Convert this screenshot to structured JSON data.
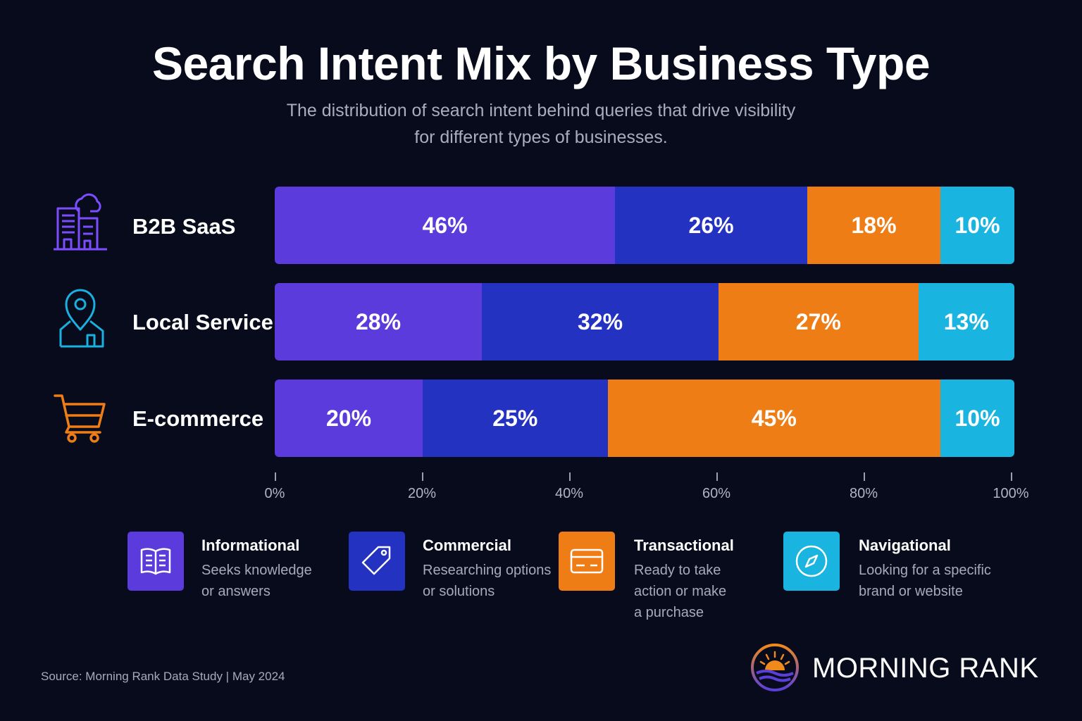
{
  "header": {
    "title": "Search Intent Mix by Business Type",
    "subtitle_line1": "The distribution of search intent behind queries that drive visibility",
    "subtitle_line2": "for different types of businesses."
  },
  "colors": {
    "informational": "#5b3bdb",
    "commercial": "#2332c0",
    "transactional": "#ef7d16",
    "navigational": "#19b5e0",
    "background": "#070b1c"
  },
  "chart_data": {
    "type": "bar",
    "orientation": "horizontal",
    "stacked": true,
    "title": "Search Intent Mix by Business Type",
    "categories": [
      "B2B SaaS",
      "Local Service",
      "E-commerce"
    ],
    "series": [
      {
        "name": "Informational",
        "values": [
          46,
          28,
          20
        ]
      },
      {
        "name": "Commercial",
        "values": [
          26,
          32,
          25
        ]
      },
      {
        "name": "Transactional",
        "values": [
          18,
          27,
          45
        ]
      },
      {
        "name": "Navigational",
        "values": [
          10,
          13,
          10
        ]
      }
    ],
    "xlim": [
      0,
      100
    ],
    "x_ticks": [
      "0%",
      "20%",
      "40%",
      "60%",
      "80%",
      "100%"
    ],
    "unit": "%",
    "grid": false,
    "legend_position": "bottom"
  },
  "row_icons": [
    "buildings-icon",
    "location-pin-house-icon",
    "shopping-cart-icon"
  ],
  "legend": [
    {
      "title": "Informational",
      "desc": [
        "Seeks knowledge",
        "or answers"
      ],
      "icon": "open-book-icon"
    },
    {
      "title": "Commercial",
      "desc": [
        "Researching options",
        "or solutions"
      ],
      "icon": "price-tag-icon"
    },
    {
      "title": "Transactional",
      "desc": [
        "Ready to take",
        "action or make",
        "a purchase"
      ],
      "icon": "credit-card-icon"
    },
    {
      "title": "Navigational",
      "desc": [
        "Looking for a specific",
        "brand or website"
      ],
      "icon": "compass-icon"
    }
  ],
  "footer": {
    "source": "Source:  Morning Rank Data Study | May 2024",
    "brand": "MORNING RANK"
  }
}
